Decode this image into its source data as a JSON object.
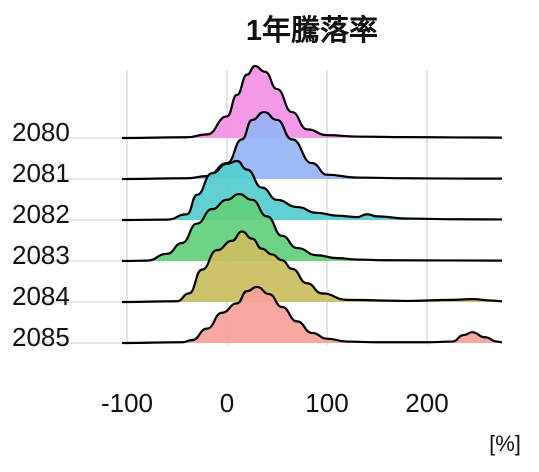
{
  "chart_data": {
    "type": "ridgeline",
    "title": "1年騰落率",
    "xlabel": "[%]",
    "ylabel": "",
    "xlim": [
      -110,
      280
    ],
    "x_ticks": [
      -100,
      0,
      100,
      200
    ],
    "x_tick_labels": [
      "-100",
      "0",
      "100",
      "200"
    ],
    "grid": true,
    "legend": "none",
    "series": [
      {
        "name": "2080",
        "color": "#F38FE6",
        "points": [
          [
            -105,
            0
          ],
          [
            -40,
            0.01
          ],
          [
            -20,
            0.05
          ],
          [
            0,
            0.3
          ],
          [
            10,
            0.6
          ],
          [
            20,
            0.88
          ],
          [
            28,
            1.0
          ],
          [
            38,
            0.92
          ],
          [
            50,
            0.68
          ],
          [
            65,
            0.36
          ],
          [
            80,
            0.12
          ],
          [
            100,
            0.04
          ],
          [
            130,
            0.02
          ],
          [
            180,
            0.012
          ],
          [
            230,
            0.008
          ],
          [
            275,
            0.005
          ]
        ]
      },
      {
        "name": "2081",
        "color": "#96B4F5",
        "points": [
          [
            -105,
            0
          ],
          [
            -40,
            0.01
          ],
          [
            -20,
            0.04
          ],
          [
            0,
            0.22
          ],
          [
            15,
            0.55
          ],
          [
            25,
            0.82
          ],
          [
            37,
            0.93
          ],
          [
            50,
            0.82
          ],
          [
            65,
            0.55
          ],
          [
            85,
            0.22
          ],
          [
            100,
            0.06
          ],
          [
            130,
            0.02
          ],
          [
            180,
            0.01
          ],
          [
            230,
            0.006
          ],
          [
            275,
            0.005
          ]
        ]
      },
      {
        "name": "2082",
        "color": "#52CCCF",
        "points": [
          [
            -105,
            0
          ],
          [
            -60,
            0.005
          ],
          [
            -40,
            0.08
          ],
          [
            -30,
            0.35
          ],
          [
            -15,
            0.65
          ],
          [
            0,
            0.78
          ],
          [
            10,
            0.82
          ],
          [
            20,
            0.7
          ],
          [
            35,
            0.45
          ],
          [
            50,
            0.28
          ],
          [
            70,
            0.18
          ],
          [
            90,
            0.1
          ],
          [
            110,
            0.06
          ],
          [
            130,
            0.04
          ],
          [
            140,
            0.08
          ],
          [
            150,
            0.05
          ],
          [
            180,
            0.02
          ],
          [
            230,
            0.01
          ],
          [
            275,
            0.008
          ]
        ]
      },
      {
        "name": "2083",
        "color": "#63CF7C",
        "points": [
          [
            -105,
            0
          ],
          [
            -80,
            0.005
          ],
          [
            -60,
            0.1
          ],
          [
            -45,
            0.25
          ],
          [
            -30,
            0.52
          ],
          [
            -15,
            0.72
          ],
          [
            0,
            0.85
          ],
          [
            12,
            0.93
          ],
          [
            25,
            0.85
          ],
          [
            40,
            0.62
          ],
          [
            55,
            0.35
          ],
          [
            70,
            0.18
          ],
          [
            90,
            0.08
          ],
          [
            110,
            0.04
          ],
          [
            130,
            0.02
          ],
          [
            160,
            0.01
          ],
          [
            275,
            0.005
          ]
        ]
      },
      {
        "name": "2084",
        "color": "#C9BE5E",
        "points": [
          [
            -105,
            0
          ],
          [
            -50,
            0.01
          ],
          [
            -38,
            0.12
          ],
          [
            -25,
            0.45
          ],
          [
            -10,
            0.72
          ],
          [
            5,
            0.85
          ],
          [
            15,
            0.98
          ],
          [
            25,
            0.88
          ],
          [
            35,
            0.74
          ],
          [
            45,
            0.66
          ],
          [
            55,
            0.58
          ],
          [
            65,
            0.46
          ],
          [
            80,
            0.26
          ],
          [
            95,
            0.12
          ],
          [
            120,
            0.03
          ],
          [
            180,
            0.015
          ],
          [
            225,
            0.03
          ],
          [
            245,
            0.04
          ],
          [
            265,
            0.02
          ],
          [
            275,
            0.01
          ]
        ]
      },
      {
        "name": "2085",
        "color": "#F6A198",
        "points": [
          [
            -105,
            0
          ],
          [
            -45,
            0.01
          ],
          [
            -35,
            0.04
          ],
          [
            -20,
            0.2
          ],
          [
            -5,
            0.42
          ],
          [
            10,
            0.55
          ],
          [
            20,
            0.72
          ],
          [
            30,
            0.78
          ],
          [
            42,
            0.68
          ],
          [
            55,
            0.5
          ],
          [
            70,
            0.3
          ],
          [
            85,
            0.14
          ],
          [
            100,
            0.06
          ],
          [
            120,
            0.02
          ],
          [
            150,
            0.01
          ],
          [
            200,
            0.01
          ],
          [
            225,
            0.02
          ],
          [
            237,
            0.11
          ],
          [
            245,
            0.15
          ],
          [
            258,
            0.08
          ],
          [
            270,
            0.02
          ],
          [
            275,
            0.01
          ]
        ]
      }
    ]
  }
}
